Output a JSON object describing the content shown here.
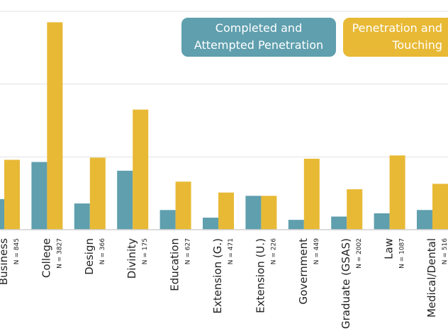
{
  "chart_data": {
    "type": "bar",
    "title": "",
    "xlabel": "",
    "ylabel": "",
    "ylim": [
      0,
      10
    ],
    "grid": true,
    "legend_placement": "top-right",
    "categories": [
      "Business",
      "College",
      "Design",
      "Divinity",
      "Education",
      "Extension (G.)",
      "Extension (U.)",
      "Government",
      "Graduate (GSAS)",
      "Law",
      "Medical/Dental"
    ],
    "sample_sizes": [
      "N = 845",
      "N = 3827",
      "N = 366",
      "N = 175",
      "N = 627",
      "N = 471",
      "N = 226",
      "N = 449",
      "N = 2002",
      "N = 1087",
      "N = 516"
    ],
    "series": [
      {
        "name": "Completed and Attempted Penetration",
        "color": "#5f9fae",
        "values": [
          1.4,
          3.1,
          1.2,
          2.7,
          0.9,
          0.55,
          1.55,
          0.45,
          0.6,
          0.75,
          0.9
        ]
      },
      {
        "name": "Penetration and Touching",
        "color": "#e8b935",
        "values": [
          3.2,
          9.5,
          3.3,
          5.5,
          2.2,
          1.7,
          1.55,
          3.25,
          1.85,
          3.4,
          2.1
        ]
      }
    ]
  },
  "legend": {
    "teal_line1": "Completed and",
    "teal_line2": "Attempted Penetration",
    "gold_line1": "Penetration and",
    "gold_line2": "Touching"
  }
}
